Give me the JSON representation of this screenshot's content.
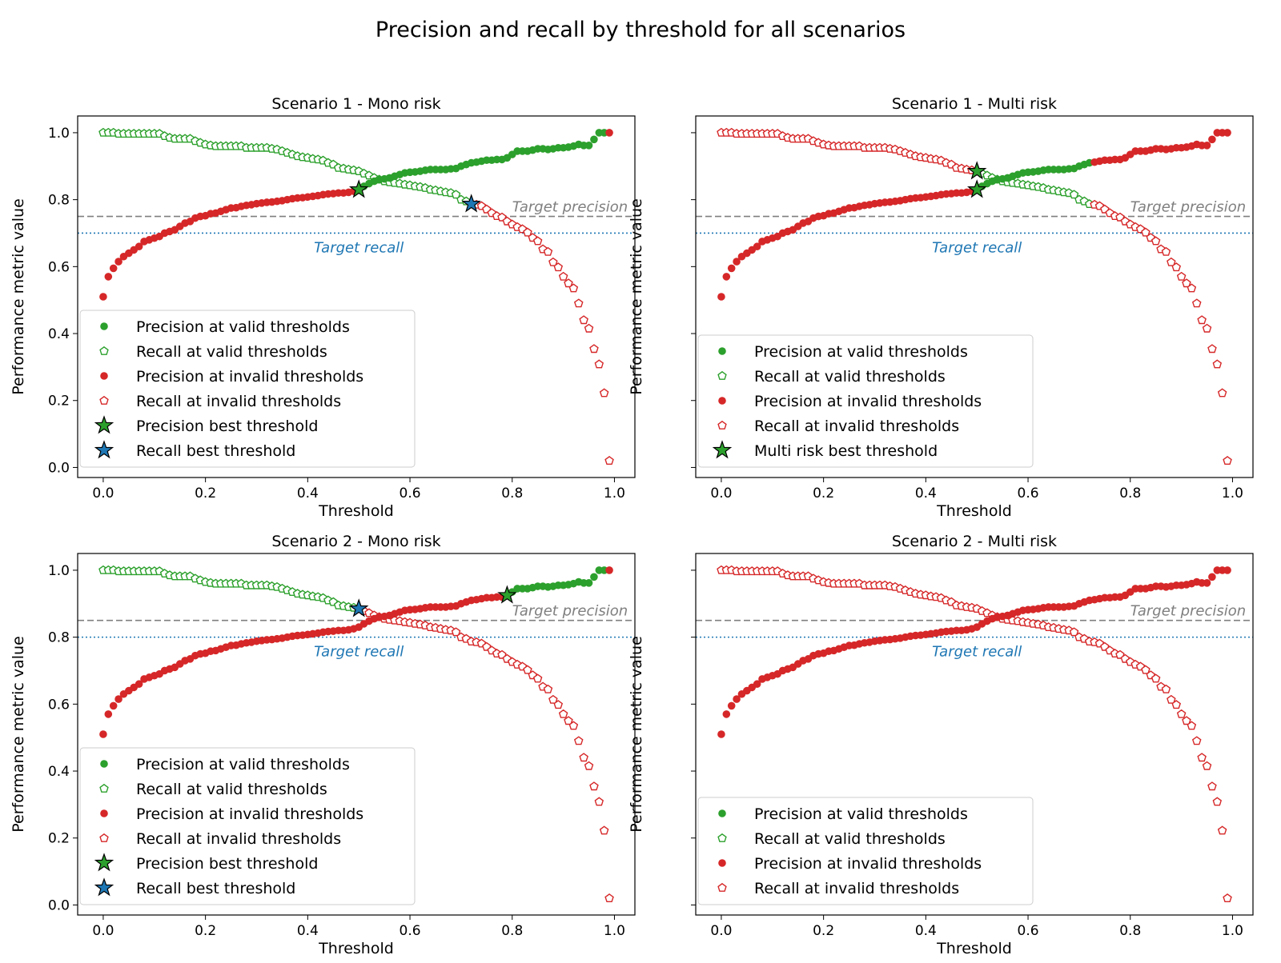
{
  "chart_data": {
    "type": "scatter",
    "title": "Precision and recall by threshold for all scenarios",
    "xlabel": "Threshold",
    "ylabel": "Performance metric value",
    "xticks": [
      "0.0",
      "0.2",
      "0.4",
      "0.6",
      "0.8",
      "1.0"
    ],
    "yticks": [
      "0.0",
      "0.2",
      "0.4",
      "0.6",
      "0.8",
      "1.0"
    ],
    "xlim": [
      -0.05,
      1.04
    ],
    "ylim": [
      -0.03,
      1.05
    ],
    "grid": false,
    "colors": {
      "valid": "#2ca02c",
      "invalid": "#d62728",
      "recall_star": "#1f77b4",
      "target_precision": "#7f7f7f",
      "target_recall": "#1f77b4"
    },
    "x": [
      0,
      0.01,
      0.02,
      0.03,
      0.04,
      0.05,
      0.06,
      0.07,
      0.08,
      0.09,
      0.1,
      0.11,
      0.12,
      0.13,
      0.14,
      0.15,
      0.16,
      0.17,
      0.18,
      0.19,
      0.2,
      0.21,
      0.22,
      0.23,
      0.24,
      0.25,
      0.26,
      0.27,
      0.28,
      0.29,
      0.3,
      0.31,
      0.32,
      0.33,
      0.34,
      0.35,
      0.36,
      0.37,
      0.38,
      0.39,
      0.4,
      0.41,
      0.42,
      0.43,
      0.44,
      0.45,
      0.46,
      0.47,
      0.48,
      0.49,
      0.5,
      0.51,
      0.52,
      0.53,
      0.54,
      0.55,
      0.56,
      0.57,
      0.58,
      0.59,
      0.6,
      0.61,
      0.62,
      0.63,
      0.64,
      0.65,
      0.66,
      0.67,
      0.68,
      0.69,
      0.7,
      0.71,
      0.72,
      0.73,
      0.74,
      0.75,
      0.76,
      0.77,
      0.78,
      0.79,
      0.8,
      0.81,
      0.82,
      0.83,
      0.84,
      0.85,
      0.86,
      0.87,
      0.88,
      0.89,
      0.9,
      0.91,
      0.92,
      0.93,
      0.94,
      0.95,
      0.96,
      0.97,
      0.98,
      0.99
    ],
    "precision": [
      0.51,
      0.57,
      0.595,
      0.615,
      0.63,
      0.64,
      0.65,
      0.66,
      0.675,
      0.68,
      0.685,
      0.69,
      0.7,
      0.705,
      0.71,
      0.72,
      0.73,
      0.735,
      0.745,
      0.75,
      0.752,
      0.758,
      0.76,
      0.765,
      0.77,
      0.775,
      0.776,
      0.78,
      0.783,
      0.785,
      0.788,
      0.79,
      0.792,
      0.793,
      0.795,
      0.797,
      0.8,
      0.803,
      0.805,
      0.806,
      0.808,
      0.81,
      0.812,
      0.815,
      0.817,
      0.818,
      0.82,
      0.82,
      0.822,
      0.825,
      0.83,
      0.84,
      0.848,
      0.855,
      0.86,
      0.862,
      0.865,
      0.87,
      0.875,
      0.88,
      0.882,
      0.883,
      0.885,
      0.888,
      0.89,
      0.89,
      0.89,
      0.89,
      0.892,
      0.893,
      0.9,
      0.905,
      0.91,
      0.912,
      0.915,
      0.918,
      0.918,
      0.92,
      0.92,
      0.925,
      0.935,
      0.945,
      0.945,
      0.945,
      0.948,
      0.952,
      0.952,
      0.95,
      0.952,
      0.955,
      0.955,
      0.957,
      0.96,
      0.965,
      0.962,
      0.962,
      0.98,
      1.0,
      1.0,
      1.0
    ],
    "recall": [
      1.0,
      1.0,
      1.0,
      0.997,
      0.997,
      0.997,
      0.997,
      0.997,
      0.997,
      0.997,
      0.997,
      0.997,
      0.99,
      0.985,
      0.982,
      0.982,
      0.982,
      0.982,
      0.975,
      0.97,
      0.965,
      0.962,
      0.96,
      0.96,
      0.96,
      0.96,
      0.96,
      0.96,
      0.955,
      0.955,
      0.955,
      0.955,
      0.955,
      0.952,
      0.95,
      0.945,
      0.94,
      0.935,
      0.93,
      0.927,
      0.925,
      0.922,
      0.92,
      0.917,
      0.91,
      0.905,
      0.895,
      0.893,
      0.89,
      0.888,
      0.885,
      0.878,
      0.872,
      0.865,
      0.86,
      0.855,
      0.852,
      0.85,
      0.848,
      0.845,
      0.843,
      0.84,
      0.838,
      0.835,
      0.83,
      0.828,
      0.825,
      0.822,
      0.82,
      0.815,
      0.8,
      0.795,
      0.787,
      0.785,
      0.781,
      0.771,
      0.76,
      0.751,
      0.747,
      0.735,
      0.726,
      0.718,
      0.712,
      0.702,
      0.686,
      0.676,
      0.652,
      0.644,
      0.613,
      0.598,
      0.57,
      0.55,
      0.535,
      0.49,
      0.44,
      0.415,
      0.354,
      0.308,
      0.222,
      0.02
    ],
    "subplots": [
      {
        "title": "Scenario 1 - Mono risk",
        "target_precision": {
          "value": 0.75,
          "label": "Target precision"
        },
        "target_recall": {
          "value": 0.7,
          "label": "Target recall"
        },
        "precision_valid_range": [
          0.5,
          0.98
        ],
        "recall_valid_range": [
          0.0,
          0.72
        ],
        "stars": [
          {
            "label": "Precision best threshold",
            "x": 0.5,
            "y": 0.83,
            "color": "#2ca02c"
          },
          {
            "label": "Recall best threshold",
            "x": 0.72,
            "y": 0.787,
            "color": "#1f77b4"
          }
        ],
        "legend": [
          "Precision at valid thresholds",
          "Recall at valid thresholds",
          "Precision at invalid thresholds",
          "Recall at invalid thresholds",
          "Precision best threshold",
          "Recall best threshold"
        ]
      },
      {
        "title": "Scenario 1 - Multi risk",
        "target_precision": {
          "value": 0.75,
          "label": "Target precision"
        },
        "target_recall": {
          "value": 0.7,
          "label": "Target recall"
        },
        "precision_valid_range": [
          0.5,
          0.72
        ],
        "recall_valid_range": [
          0.5,
          0.72
        ],
        "stars": [
          {
            "label": "Multi risk best threshold",
            "x": 0.5,
            "y": 0.885,
            "color": "#2ca02c"
          },
          {
            "label": "Multi risk best threshold",
            "x": 0.5,
            "y": 0.83,
            "color": "#2ca02c"
          }
        ],
        "legend": [
          "Precision at valid thresholds",
          "Recall at valid thresholds",
          "Precision at invalid thresholds",
          "Recall at invalid thresholds",
          "Multi risk best threshold"
        ]
      },
      {
        "title": "Scenario 2 - Mono risk",
        "target_precision": {
          "value": 0.85,
          "label": "Target precision"
        },
        "target_recall": {
          "value": 0.8,
          "label": "Target recall"
        },
        "precision_valid_range": [
          0.79,
          0.98
        ],
        "recall_valid_range": [
          0.0,
          0.5
        ],
        "stars": [
          {
            "label": "Precision best threshold",
            "x": 0.79,
            "y": 0.925,
            "color": "#2ca02c"
          },
          {
            "label": "Recall best threshold",
            "x": 0.5,
            "y": 0.885,
            "color": "#1f77b4"
          }
        ],
        "legend": [
          "Precision at valid thresholds",
          "Recall at valid thresholds",
          "Precision at invalid thresholds",
          "Recall at invalid thresholds",
          "Precision best threshold",
          "Recall best threshold"
        ]
      },
      {
        "title": "Scenario 2 - Multi risk",
        "target_precision": {
          "value": 0.85,
          "label": "Target precision"
        },
        "target_recall": {
          "value": 0.8,
          "label": "Target recall"
        },
        "precision_valid_range": null,
        "recall_valid_range": null,
        "stars": [],
        "legend": [
          "Precision at valid thresholds",
          "Recall at valid thresholds",
          "Precision at invalid thresholds",
          "Recall at invalid thresholds"
        ]
      }
    ]
  }
}
